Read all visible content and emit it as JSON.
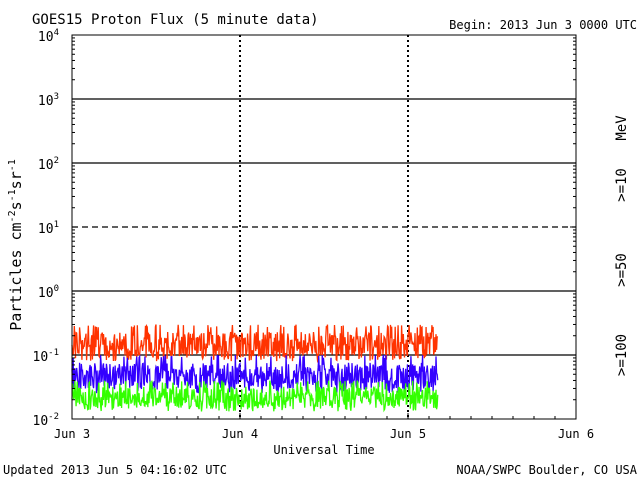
{
  "header": {
    "title": "GOES15 Proton Flux (5 minute data)",
    "begin": "Begin: 2013 Jun 3 0000 UTC"
  },
  "footer": {
    "updated": "Updated 2013 Jun  5 04:16:02 UTC",
    "credit": "NOAA/SWPC Boulder, CO USA"
  },
  "chart_data": {
    "type": "line",
    "title": "GOES15 Proton Flux (5 minute data)",
    "xlabel": "Universal Time",
    "ylabel": "Particles cm-2s-1sr-1",
    "yscale": "log",
    "ylim": [
      0.01,
      10000
    ],
    "x_ticks": [
      "Jun 3",
      "Jun 4",
      "Jun 5",
      "Jun 6"
    ],
    "xlim": [
      "2013-06-03 00:00",
      "2013-06-06 00:00"
    ],
    "data_end": "2013-06-05 04:15",
    "y_ticks": [
      {
        "base": "10",
        "exp": "-2"
      },
      {
        "base": "10",
        "exp": "-1"
      },
      {
        "base": "10",
        "exp": "0"
      },
      {
        "base": "10",
        "exp": "1"
      },
      {
        "base": "10",
        "exp": "2"
      },
      {
        "base": "10",
        "exp": "3"
      },
      {
        "base": "10",
        "exp": "4"
      }
    ],
    "horizontal_lines": [
      {
        "value": 0.1,
        "style": "solid"
      },
      {
        "value": 1,
        "style": "solid"
      },
      {
        "value": 10,
        "style": "dashed"
      },
      {
        "value": 100,
        "style": "solid"
      },
      {
        "value": 1000,
        "style": "solid"
      }
    ],
    "unit_label": "MeV",
    "series": [
      {
        "name": ">=10",
        "color": "#ff3300",
        "typical_range": [
          0.08,
          0.3
        ]
      },
      {
        "name": ">=50",
        "color": "#3300ff",
        "typical_range": [
          0.025,
          0.1
        ]
      },
      {
        "name": ">=100",
        "color": "#33ff00",
        "typical_range": [
          0.013,
          0.04
        ]
      }
    ]
  }
}
